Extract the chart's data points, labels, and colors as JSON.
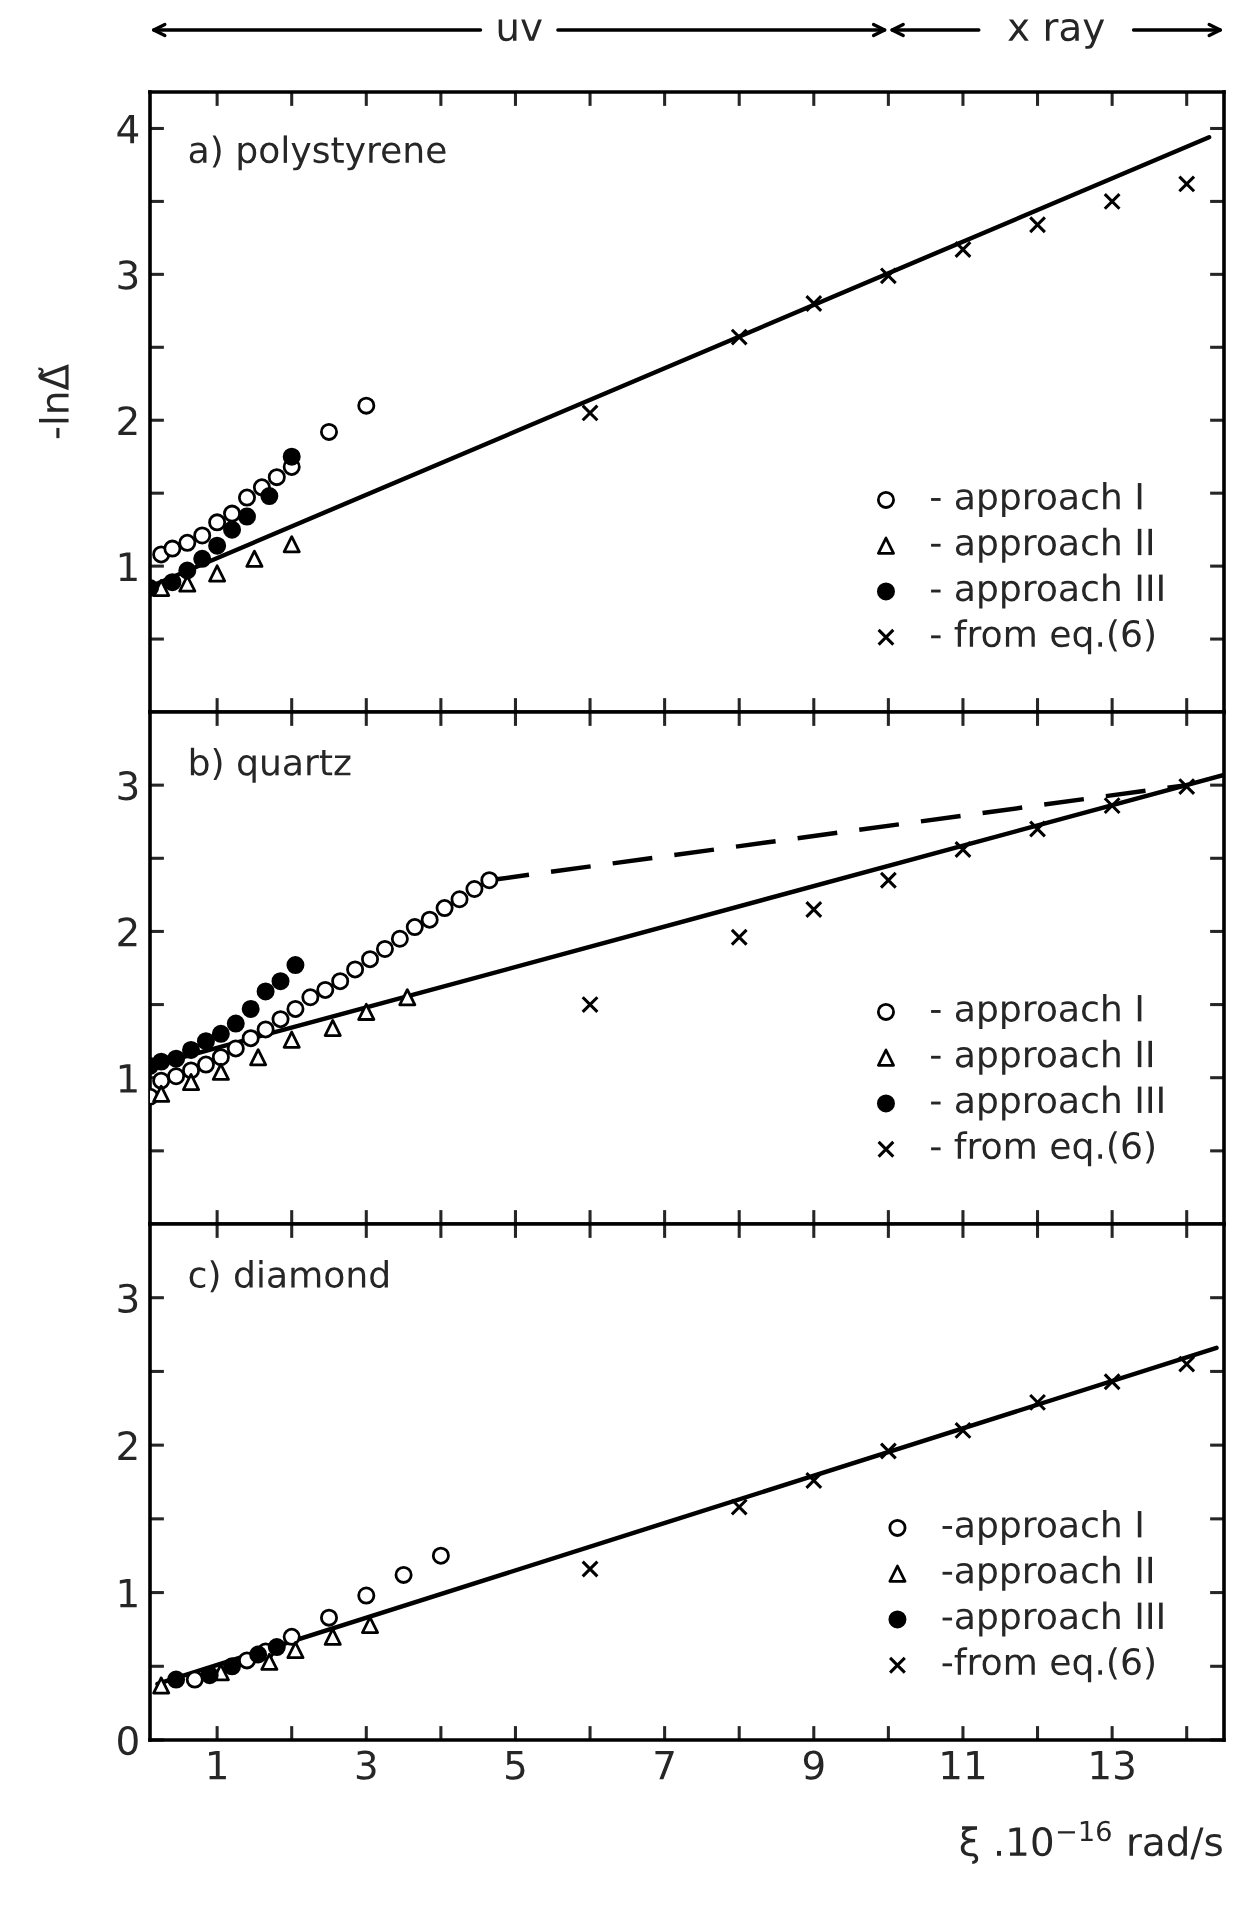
{
  "chart_data": [
    {
      "type": "scatter",
      "title": "a) polystyrene",
      "ylabel": "-lnΔ̃",
      "xlim": [
        0.1,
        14.5
      ],
      "ylim": [
        0,
        4.25
      ],
      "xticks": [
        1,
        2,
        3,
        4,
        5,
        6,
        7,
        8,
        9,
        10,
        11,
        12,
        13,
        14
      ],
      "yticks": [
        {
          "value": 0.5,
          "label": null
        },
        1,
        {
          "value": 1.5,
          "label": null
        },
        2,
        {
          "value": 2.5,
          "label": null
        },
        3,
        {
          "value": 3.5,
          "label": null
        },
        4
      ],
      "tick_labels": "y",
      "legend": "lower right",
      "annotations": [
        "uv",
        "x ray"
      ],
      "series": [
        {
          "name": "- approach I",
          "type": "scatter",
          "marker": "circle",
          "color": "#ffffff",
          "x": [
            0.25,
            0.4,
            0.6,
            0.8,
            1.0,
            1.2,
            1.4,
            1.6,
            1.8,
            2.0,
            2.5,
            3.0
          ],
          "values": [
            1.08,
            1.12,
            1.16,
            1.21,
            1.3,
            1.36,
            1.47,
            1.54,
            1.61,
            1.68,
            1.92,
            2.1
          ]
        },
        {
          "name": "- approach II",
          "type": "scatter",
          "marker": "triangle",
          "color": "#ffffff",
          "x": [
            0.25,
            0.6,
            1.0,
            1.5,
            2.0
          ],
          "values": [
            0.85,
            0.88,
            0.95,
            1.05,
            1.15
          ]
        },
        {
          "name": "- approach III",
          "type": "scatter",
          "marker": "circle",
          "color": "#000000",
          "x": [
            0.1,
            0.4,
            0.6,
            0.8,
            1.0,
            1.2,
            1.4,
            1.7,
            2.0
          ],
          "values": [
            0.85,
            0.89,
            0.97,
            1.05,
            1.14,
            1.25,
            1.34,
            1.48,
            1.75
          ]
        },
        {
          "name": "- from eq.(6)",
          "type": "scatter",
          "marker": "cross",
          "color": "#000000",
          "x": [
            6,
            8,
            9,
            10,
            11,
            12,
            13,
            14
          ],
          "values": [
            2.05,
            2.57,
            2.8,
            2.99,
            3.17,
            3.34,
            3.5,
            3.62
          ]
        },
        {
          "type": "line",
          "line_style": "solid",
          "marker": "none",
          "color": "#000000",
          "x": [
            0.1,
            14.3
          ],
          "values": [
            0.86,
            3.94
          ]
        }
      ]
    },
    {
      "type": "scatter",
      "title": "b) quartz",
      "xlim": [
        0.1,
        14.5
      ],
      "ylim": [
        0,
        3.5
      ],
      "xticks": [
        1,
        2,
        3,
        4,
        5,
        6,
        7,
        8,
        9,
        10,
        11,
        12,
        13,
        14
      ],
      "yticks": [
        {
          "value": 0.5,
          "label": null
        },
        1,
        {
          "value": 1.5,
          "label": null
        },
        2,
        {
          "value": 2.5,
          "label": null
        },
        3
      ],
      "tick_labels": "y",
      "legend": "lower right",
      "series": [
        {
          "name": "- approach I",
          "type": "scatter",
          "marker": "circle",
          "color": "#ffffff",
          "x": [
            0.1,
            0.25,
            0.45,
            0.65,
            0.85,
            1.05,
            1.25,
            1.45,
            1.65,
            1.85,
            2.05,
            2.25,
            2.45,
            2.65,
            2.85,
            3.05,
            3.25,
            3.45,
            3.65,
            3.85,
            4.05,
            4.25,
            4.45,
            4.65
          ],
          "values": [
            0.87,
            0.98,
            1.01,
            1.05,
            1.09,
            1.14,
            1.2,
            1.27,
            1.33,
            1.4,
            1.47,
            1.55,
            1.6,
            1.66,
            1.74,
            1.81,
            1.88,
            1.95,
            2.03,
            2.08,
            2.16,
            2.22,
            2.29,
            2.35
          ]
        },
        {
          "name": "- approach II",
          "type": "scatter",
          "marker": "triangle",
          "color": "#ffffff",
          "x": [
            0.25,
            0.65,
            1.05,
            1.55,
            2.0,
            2.55,
            3.0,
            3.55
          ],
          "values": [
            0.89,
            0.97,
            1.04,
            1.14,
            1.26,
            1.34,
            1.45,
            1.55
          ]
        },
        {
          "name": "- approach III",
          "type": "scatter",
          "marker": "circle",
          "color": "#000000",
          "x": [
            0.1,
            0.25,
            0.45,
            0.65,
            0.85,
            1.05,
            1.25,
            1.45,
            1.65,
            1.85,
            2.05
          ],
          "values": [
            1.08,
            1.11,
            1.13,
            1.19,
            1.25,
            1.3,
            1.37,
            1.47,
            1.59,
            1.66,
            1.77
          ]
        },
        {
          "name": "- from eq.(6)",
          "type": "scatter",
          "marker": "cross",
          "color": "#000000",
          "x": [
            6,
            8,
            9,
            10,
            11,
            12,
            13,
            14
          ],
          "values": [
            1.5,
            1.96,
            2.15,
            2.35,
            2.56,
            2.7,
            2.86,
            2.99
          ]
        },
        {
          "type": "line",
          "line_style": "solid",
          "marker": "none",
          "color": "#000000",
          "x": [
            0.1,
            14.5
          ],
          "values": [
            1.08,
            3.07
          ]
        },
        {
          "type": "line",
          "line_style": "dashed",
          "marker": "none",
          "color": "#000000",
          "x": [
            4.65,
            14.0
          ],
          "values": [
            2.35,
            3.0
          ]
        }
      ]
    },
    {
      "type": "scatter",
      "title": "c) diamond",
      "xlabel": "ξ .10$^{−16}$ rad/s",
      "xlim": [
        0.1,
        14.5
      ],
      "ylim": [
        0,
        3.5
      ],
      "xticks": [
        1,
        {
          "value": 2,
          "label": null
        },
        3,
        {
          "value": 4,
          "label": null
        },
        5,
        {
          "value": 6,
          "label": null
        },
        7,
        {
          "value": 8,
          "label": null
        },
        9,
        {
          "value": 10,
          "label": null
        },
        11,
        {
          "value": 12,
          "label": null
        },
        13,
        {
          "value": 14,
          "label": null
        }
      ],
      "yticks": [
        0,
        {
          "value": 0.5,
          "label": null
        },
        1,
        {
          "value": 1.5,
          "label": null
        },
        2,
        {
          "value": 2.5,
          "label": null
        },
        3
      ],
      "legend": "lower right",
      "series": [
        {
          "name": "-approach I",
          "type": "scatter",
          "marker": "circle",
          "color": "#ffffff",
          "x": [
            0.7,
            1.4,
            1.65,
            2.0,
            2.5,
            3.0,
            3.5,
            4.0
          ],
          "values": [
            0.41,
            0.54,
            0.6,
            0.7,
            0.83,
            0.98,
            1.12,
            1.25
          ]
        },
        {
          "name": "-approach II",
          "type": "scatter",
          "marker": "triangle",
          "color": "#ffffff",
          "x": [
            0.25,
            1.05,
            1.7,
            2.05,
            2.55,
            3.05
          ],
          "values": [
            0.37,
            0.46,
            0.53,
            0.61,
            0.7,
            0.78
          ]
        },
        {
          "name": "-approach III",
          "type": "scatter",
          "marker": "circle",
          "color": "#000000",
          "x": [
            0.45,
            0.9,
            1.2,
            1.55,
            1.8
          ],
          "values": [
            0.41,
            0.44,
            0.5,
            0.58,
            0.63
          ]
        },
        {
          "name": "-from eq.(6)",
          "type": "scatter",
          "marker": "cross",
          "color": "#000000",
          "x": [
            6,
            8,
            9,
            10,
            11,
            12,
            13,
            14
          ],
          "values": [
            1.16,
            1.58,
            1.76,
            1.96,
            2.1,
            2.29,
            2.43,
            2.55
          ]
        },
        {
          "type": "line",
          "line_style": "solid",
          "marker": "none",
          "color": "#000000",
          "x": [
            0.2,
            14.4
          ],
          "values": [
            0.38,
            2.66
          ]
        }
      ]
    }
  ]
}
